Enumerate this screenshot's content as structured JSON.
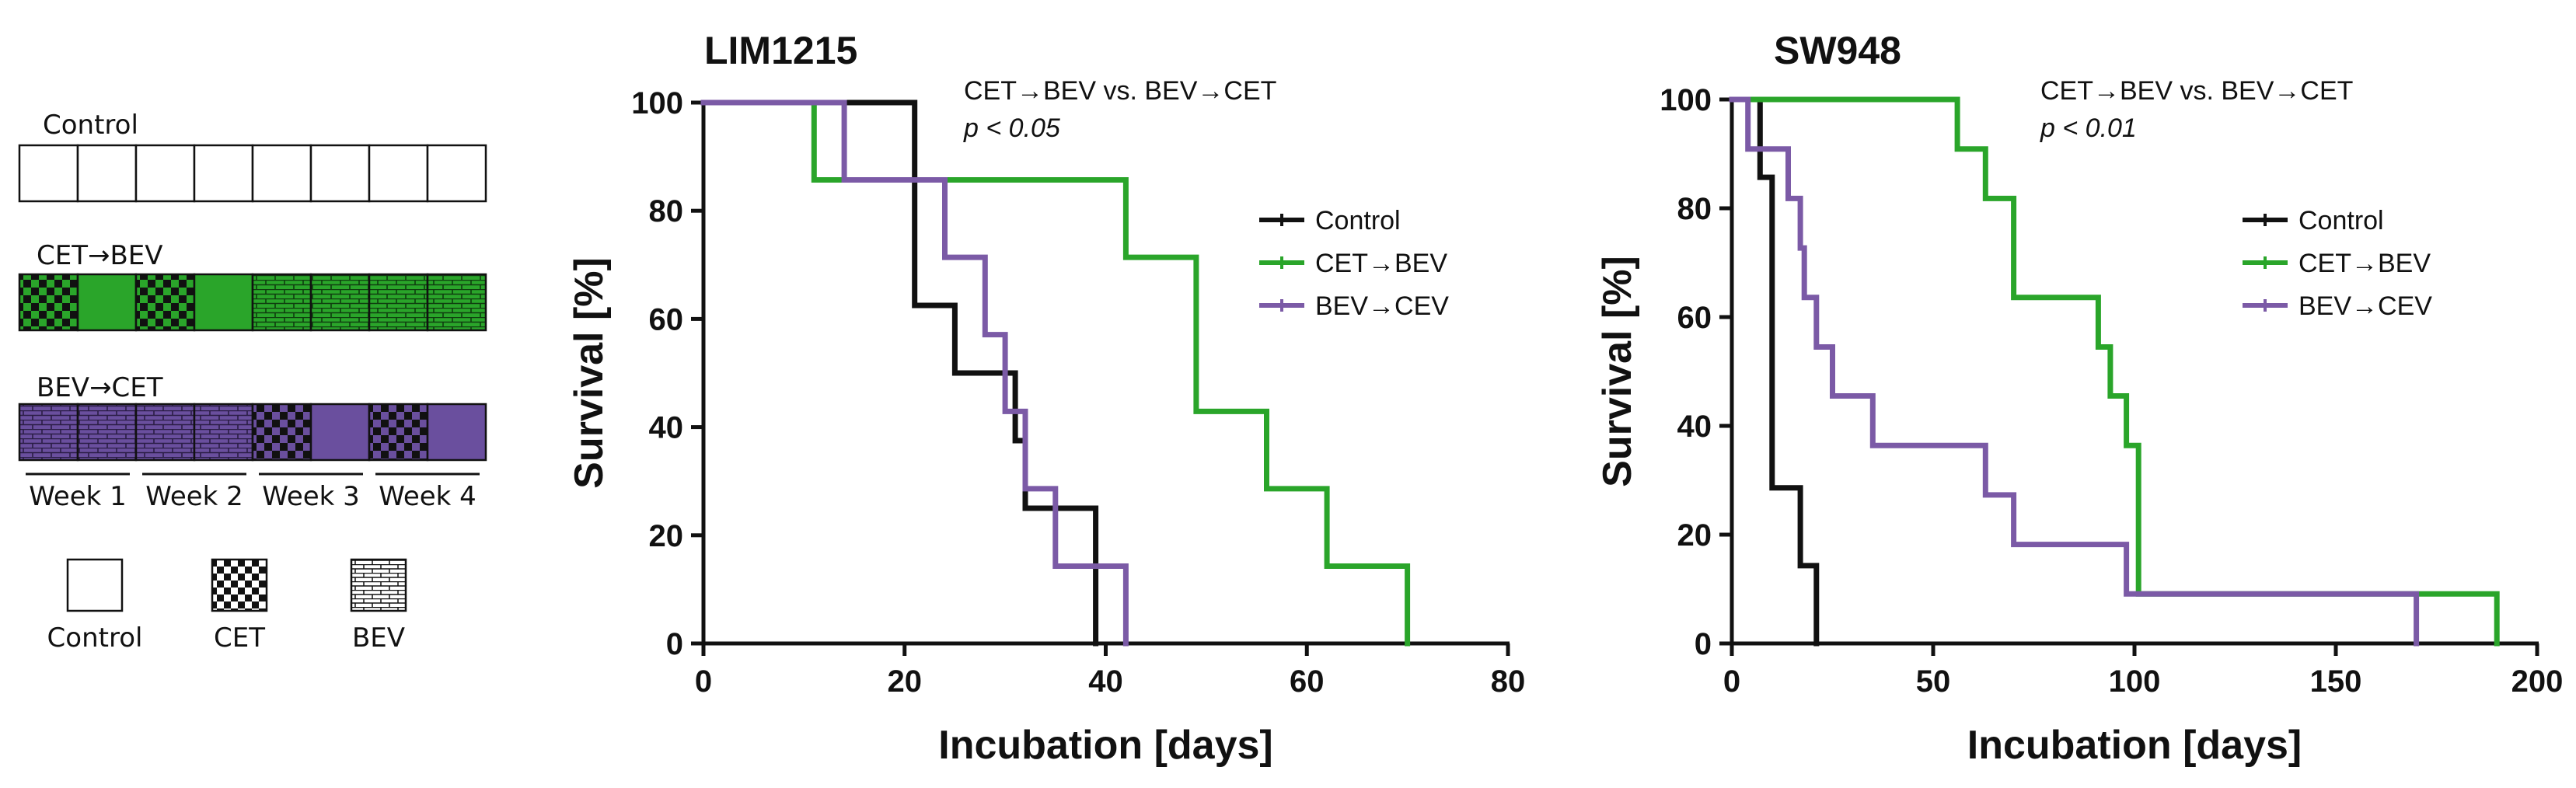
{
  "colors": {
    "control": "#111111",
    "cet_bev": "#2aa52a",
    "bev_cet": "#7b5aa6",
    "cet_fill": "#2aa52a",
    "bev_fill": "#6a4f9e"
  },
  "schematic": {
    "rows": [
      {
        "label": "Control",
        "cells": [
          "empty",
          "empty",
          "empty",
          "empty",
          "empty",
          "empty",
          "empty",
          "empty"
        ]
      },
      {
        "label": "CET→BEV",
        "cells": [
          "cet-check",
          "cet-solid",
          "cet-check",
          "cet-solid",
          "cet-brick",
          "cet-brick",
          "cet-brick",
          "cet-brick"
        ]
      },
      {
        "label": "BEV→CET",
        "cells": [
          "bev-brick",
          "bev-brick",
          "bev-brick",
          "bev-brick",
          "bev-check",
          "bev-solid",
          "bev-check",
          "bev-solid"
        ]
      }
    ],
    "weeks": [
      "Week 1",
      "Week 2",
      "Week 3",
      "Week 4"
    ],
    "legend": [
      {
        "label": "Control",
        "pattern": "empty"
      },
      {
        "label": "CET",
        "pattern": "check"
      },
      {
        "label": "BEV",
        "pattern": "brick"
      }
    ]
  },
  "chart_data": [
    {
      "type": "line",
      "title": "LIM1215",
      "xlabel": "Incubation [days]",
      "ylabel": "Survival [%]",
      "xlim": [
        0,
        80
      ],
      "ylim": [
        0,
        100
      ],
      "xticks": [
        0,
        20,
        40,
        60,
        80
      ],
      "yticks": [
        0,
        20,
        40,
        60,
        80,
        100
      ],
      "annotation": "CET→BEV vs. BEV→CET",
      "pvalue": "p < 0.05",
      "series": [
        {
          "name": "Control",
          "color_key": "control",
          "x": [
            0,
            21,
            21,
            25,
            25,
            31,
            31,
            32,
            32,
            39,
            39
          ],
          "y": [
            100,
            100,
            62.5,
            62.5,
            50,
            50,
            37.5,
            37.5,
            25,
            25,
            0
          ]
        },
        {
          "name": "CET→BEV",
          "color_key": "cet_bev",
          "x": [
            0,
            11,
            11,
            42,
            42,
            49,
            49,
            56,
            56,
            62,
            62,
            70,
            70
          ],
          "y": [
            100,
            100,
            85.7,
            85.7,
            71.4,
            71.4,
            42.9,
            42.9,
            28.6,
            28.6,
            14.3,
            14.3,
            0
          ]
        },
        {
          "name": "BEV→CEV",
          "color_key": "bev_cet",
          "x": [
            0,
            14,
            14,
            24,
            24,
            28,
            28,
            30,
            30,
            32,
            32,
            35,
            35,
            42,
            42
          ],
          "y": [
            100,
            100,
            85.7,
            85.7,
            71.4,
            71.4,
            57.1,
            57.1,
            42.9,
            42.9,
            28.6,
            28.6,
            14.3,
            14.3,
            0
          ]
        }
      ]
    },
    {
      "type": "line",
      "title": "SW948",
      "xlabel": "Incubation [days]",
      "ylabel": "Survival [%]",
      "xlim": [
        0,
        200
      ],
      "ylim": [
        0,
        100
      ],
      "xticks": [
        0,
        50,
        100,
        150,
        200
      ],
      "yticks": [
        0,
        20,
        40,
        60,
        80,
        100
      ],
      "annotation": "CET→BEV vs. BEV→CET",
      "pvalue": "p < 0.01",
      "series": [
        {
          "name": "Control",
          "color_key": "control",
          "x": [
            0,
            7,
            7,
            10,
            10,
            14,
            14,
            17,
            17,
            21,
            21
          ],
          "y": [
            100,
            100,
            85.7,
            85.7,
            28.6,
            28.6,
            28.6,
            28.6,
            14.3,
            14.3,
            0
          ]
        },
        {
          "name": "CET→BEV",
          "color_key": "cet_bev",
          "x": [
            0,
            56,
            56,
            63,
            63,
            70,
            70,
            91,
            91,
            94,
            94,
            98,
            98,
            101,
            101,
            190,
            190
          ],
          "y": [
            100,
            100,
            90.9,
            90.9,
            81.8,
            81.8,
            63.6,
            63.6,
            54.5,
            54.5,
            45.5,
            45.5,
            36.4,
            36.4,
            9.1,
            9.1,
            0
          ]
        },
        {
          "name": "BEV→CEV",
          "color_key": "bev_cet",
          "x": [
            0,
            4,
            4,
            14,
            14,
            17,
            17,
            18,
            18,
            21,
            21,
            25,
            25,
            35,
            35,
            63,
            63,
            70,
            70,
            98,
            98,
            170,
            170
          ],
          "y": [
            100,
            100,
            90.9,
            90.9,
            81.8,
            81.8,
            72.7,
            72.7,
            63.6,
            63.6,
            54.5,
            54.5,
            45.5,
            45.5,
            36.4,
            36.4,
            27.3,
            27.3,
            18.2,
            18.2,
            9.1,
            9.1,
            0
          ]
        }
      ],
      "legend_labels": [
        "Control",
        "CET→BEV",
        "BEV→CEV"
      ]
    }
  ]
}
